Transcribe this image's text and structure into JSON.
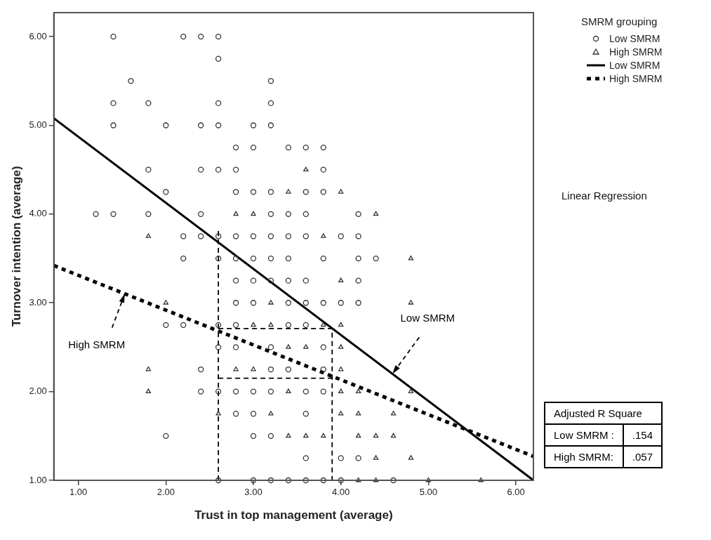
{
  "chart_data": {
    "type": "scatter",
    "xlabel": "Trust in top management (average)",
    "ylabel": "Turnover intention (average)",
    "legend_title": "SMRM grouping",
    "xlim": [
      0.72,
      6.2
    ],
    "ylim": [
      1,
      6.27
    ],
    "xticks": [
      {
        "value": 1,
        "label": "1.00"
      },
      {
        "value": 2,
        "label": "2.00"
      },
      {
        "value": 3,
        "label": "3.00"
      },
      {
        "value": 4,
        "label": "4.00"
      },
      {
        "value": 5,
        "label": "5.00"
      },
      {
        "value": 6,
        "label": "6.00"
      }
    ],
    "yticks": [
      {
        "value": 1,
        "label": "1.00"
      },
      {
        "value": 2,
        "label": "2.00"
      },
      {
        "value": 3,
        "label": "3.00"
      },
      {
        "value": 4,
        "label": "4.00"
      },
      {
        "value": 5,
        "label": "5.00"
      },
      {
        "value": 6,
        "label": "6.00"
      }
    ],
    "grid": false,
    "legend": "top right",
    "series": [
      {
        "name": "Low SMRM",
        "type": "scatter",
        "marker": "circle",
        "color": "#333333",
        "x": [
          1.4,
          2.2,
          2.4,
          2.6,
          2.6,
          1.6,
          3.2,
          1.4,
          1.8,
          2.6,
          3.2,
          1.4,
          2.0,
          2.4,
          2.6,
          3.0,
          3.2,
          2.8,
          3.0,
          3.4,
          3.6,
          3.8,
          1.8,
          2.4,
          2.6,
          2.8,
          3.8,
          2.0,
          2.8,
          3.0,
          3.2,
          3.6,
          3.8,
          1.2,
          1.4,
          1.8,
          2.4,
          3.2,
          3.4,
          3.6,
          4.2,
          2.2,
          2.4,
          2.6,
          2.8,
          3.0,
          3.2,
          3.4,
          3.6,
          4.0,
          4.2,
          2.2,
          2.6,
          2.8,
          3.0,
          3.2,
          3.4,
          3.8,
          4.2,
          4.4,
          2.8,
          3.0,
          3.2,
          3.4,
          3.6,
          4.2,
          2.8,
          3.0,
          3.4,
          3.6,
          3.8,
          4.0,
          4.2,
          2.0,
          2.2,
          2.6,
          2.8,
          3.4,
          3.6,
          2.6,
          2.8,
          3.2,
          3.8,
          2.4,
          3.2,
          3.4,
          3.8,
          2.4,
          2.6,
          2.8,
          3.0,
          3.2,
          3.6,
          3.8,
          2.8,
          3.0,
          3.6,
          2.0,
          3.0,
          3.2,
          3.6,
          4.0,
          4.2,
          2.6,
          3.0,
          3.2,
          3.4,
          3.6,
          3.8,
          4.0,
          4.6
        ],
        "values": [
          6,
          6,
          6,
          6,
          5.75,
          5.5,
          5.5,
          5.25,
          5.25,
          5.25,
          5.25,
          5,
          5,
          5,
          5,
          5,
          5,
          4.75,
          4.75,
          4.75,
          4.75,
          4.75,
          4.5,
          4.5,
          4.5,
          4.5,
          4.5,
          4.25,
          4.25,
          4.25,
          4.25,
          4.25,
          4.25,
          4,
          4,
          4,
          4,
          4,
          4,
          4,
          4,
          3.75,
          3.75,
          3.75,
          3.75,
          3.75,
          3.75,
          3.75,
          3.75,
          3.75,
          3.75,
          3.5,
          3.5,
          3.5,
          3.5,
          3.5,
          3.5,
          3.5,
          3.5,
          3.5,
          3.25,
          3.25,
          3.25,
          3.25,
          3.25,
          3.25,
          3,
          3,
          3,
          3,
          3,
          3,
          3,
          2.75,
          2.75,
          2.75,
          2.75,
          2.75,
          2.75,
          2.5,
          2.5,
          2.5,
          2.5,
          2.25,
          2.25,
          2.25,
          2.25,
          2,
          2,
          2,
          2,
          2,
          2,
          2,
          1.75,
          1.75,
          1.75,
          1.5,
          1.5,
          1.5,
          1.25,
          1.25,
          1.25,
          1,
          1,
          1,
          1,
          1,
          1,
          1,
          1
        ]
      },
      {
        "name": "High SMRM",
        "type": "scatter",
        "marker": "triangle",
        "color": "#333333",
        "x": [
          3.6,
          3.4,
          4.0,
          2.8,
          3.0,
          4.4,
          1.8,
          3.8,
          4.8,
          4.0,
          2.0,
          3.2,
          4.8,
          3.0,
          3.2,
          3.8,
          4.0,
          3.4,
          3.6,
          4.0,
          1.8,
          2.8,
          3.0,
          4.0,
          1.8,
          3.4,
          4.0,
          4.2,
          4.8,
          2.6,
          3.2,
          4.0,
          4.2,
          4.6,
          3.4,
          3.6,
          3.8,
          4.2,
          4.4,
          4.6,
          4.4,
          4.8,
          4.2,
          4.4,
          5.0,
          5.6
        ],
        "values": [
          4.5,
          4.25,
          4.25,
          4,
          4,
          4,
          3.75,
          3.75,
          3.5,
          3.25,
          3,
          3,
          3,
          2.75,
          2.75,
          2.75,
          2.75,
          2.5,
          2.5,
          2.5,
          2.25,
          2.25,
          2.25,
          2.25,
          2,
          2,
          2,
          2,
          2,
          1.75,
          1.75,
          1.75,
          1.75,
          1.75,
          1.5,
          1.5,
          1.5,
          1.5,
          1.5,
          1.5,
          1.25,
          1.25,
          1,
          1,
          1,
          1
        ]
      },
      {
        "name": "Low SMRM",
        "type": "line",
        "line_style": "solid",
        "marker": "none",
        "color": "#000000",
        "x": [
          0.72,
          6.2
        ],
        "values": [
          5.08,
          1.0
        ]
      },
      {
        "name": "High SMRM",
        "type": "line",
        "line_style": "dotted",
        "marker": "none",
        "color": "#000000",
        "x": [
          0.72,
          6.2
        ],
        "values": [
          3.42,
          1.27
        ]
      },
      {
        "type": "line",
        "line_style": "dashed",
        "marker": "none",
        "color": "#000000",
        "x": [
          2.6,
          2.6
        ],
        "values": [
          1,
          3.83
        ]
      },
      {
        "type": "line",
        "line_style": "dashed",
        "marker": "none",
        "color": "#000000",
        "x": [
          2.6,
          3.9,
          3.9
        ],
        "values": [
          2.71,
          2.71,
          1
        ]
      },
      {
        "type": "line",
        "line_style": "dashed",
        "marker": "none",
        "color": "#000000",
        "x": [
          2.6,
          3.9
        ],
        "values": [
          2.15,
          2.15
        ]
      }
    ],
    "annotations": [
      {
        "text": "High SMRM",
        "x": 1.53,
        "y": 3.1
      },
      {
        "text": "Low SMRM",
        "x": 4.59,
        "y": 2.2
      },
      "Linear Regression",
      "Adjusted R Square",
      "Low SMRM :",
      ".154",
      "High SMRM:",
      ".057"
    ]
  }
}
